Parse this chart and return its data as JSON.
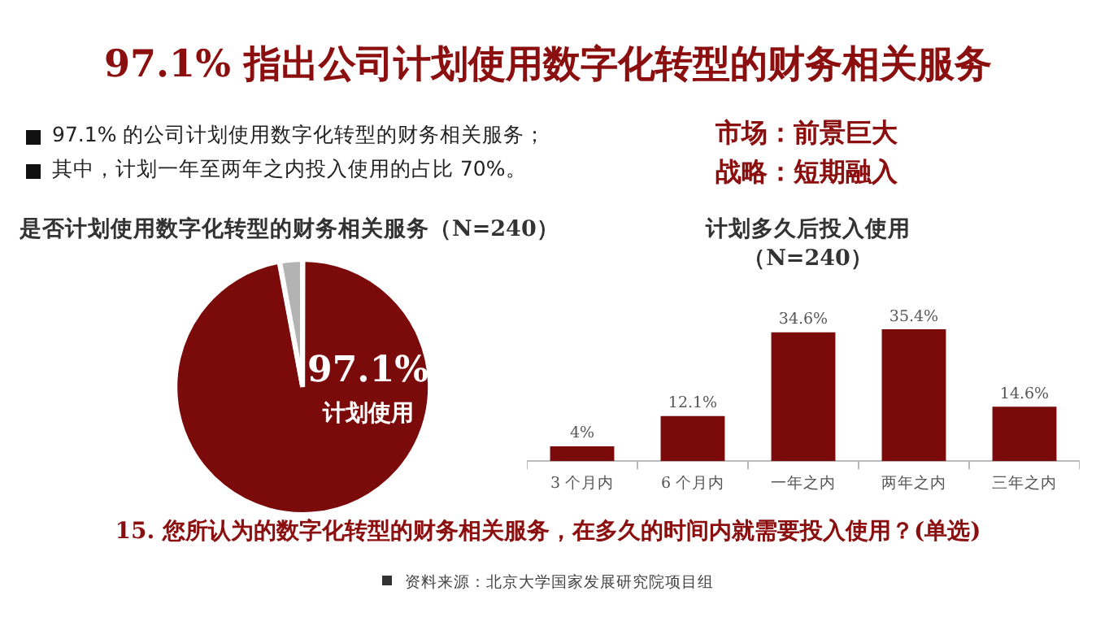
{
  "chart_data": [
    {
      "type": "other",
      "title": "97.1% 指出公司计划使用数字化转型的财务相关服务",
      "annotations": [
        "97.1% 的公司计划使用数字化转型的财务相关服务；",
        "其中，计划一年至两年之内投入使用的占比 70%。",
        "市场：前景巨大",
        "战略：短期融入",
        "15. 您所认为的数字化转型的财务相关服务，在多久的时间内就需要投入使用？(单选)",
        "资料来源：北京大学国家发展研究院项目组"
      ]
    },
    {
      "type": "pie",
      "title": "是否计划使用数字化转型的财务相关服务（N=240）",
      "categories": [
        "计划使用",
        null
      ],
      "values": [
        97.1,
        2.9
      ],
      "colors": [
        "#7b0a0a",
        "#b3b3b3"
      ],
      "value_labels": [
        "97.1%",
        null
      ],
      "legend": false
    },
    {
      "type": "bar",
      "title": "计划多久后投入使用",
      "subtitle": "（N=240）",
      "categories": [
        "3 个月内",
        "6 个月内",
        "一年之内",
        "两年之内",
        "三年之内"
      ],
      "values": [
        4,
        12.1,
        34.6,
        35.4,
        14.6
      ],
      "color": "#7b0a0a",
      "value_labels": [
        "4%",
        "12.1%",
        "34.6%",
        "35.4%",
        "14.6%"
      ],
      "legend": false,
      "grid": false
    }
  ]
}
